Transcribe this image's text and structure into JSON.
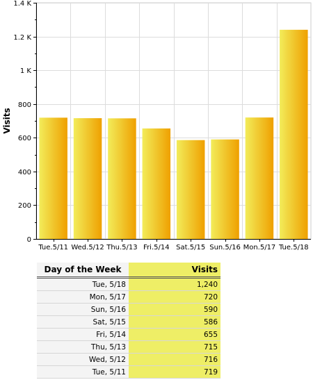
{
  "chart_data": {
    "type": "bar",
    "categories": [
      "Tue.5/11",
      "Wed.5/12",
      "Thu.5/13",
      "Fri.5/14",
      "Sat.5/15",
      "Sun.5/16",
      "Mon.5/17",
      "Tue.5/18"
    ],
    "values": [
      719,
      716,
      715,
      655,
      586,
      590,
      720,
      1240
    ],
    "xlabel": "",
    "ylabel": "Visits",
    "ylim": [
      0,
      1400
    ],
    "yticks": [
      0,
      200,
      400,
      600,
      800,
      1000,
      1200,
      1400
    ],
    "ytick_labels": [
      "0",
      "200",
      "400",
      "600",
      "800",
      "1 K",
      "1.2 K",
      "1.4 K"
    ],
    "grid": true,
    "colors": {
      "bar_light": "#f2ec5a",
      "bar_dark": "#efa000"
    }
  },
  "table": {
    "headers": [
      "Day of the Week",
      "Visits"
    ],
    "rows": [
      {
        "day": "Tue, 5/18",
        "visits": "1,240"
      },
      {
        "day": "Mon, 5/17",
        "visits": "720"
      },
      {
        "day": "Sun, 5/16",
        "visits": "590"
      },
      {
        "day": "Sat, 5/15",
        "visits": "586"
      },
      {
        "day": "Fri, 5/14",
        "visits": "655"
      },
      {
        "day": "Thu, 5/13",
        "visits": "715"
      },
      {
        "day": "Wed, 5/12",
        "visits": "716"
      },
      {
        "day": "Tue, 5/11",
        "visits": "719"
      }
    ]
  }
}
